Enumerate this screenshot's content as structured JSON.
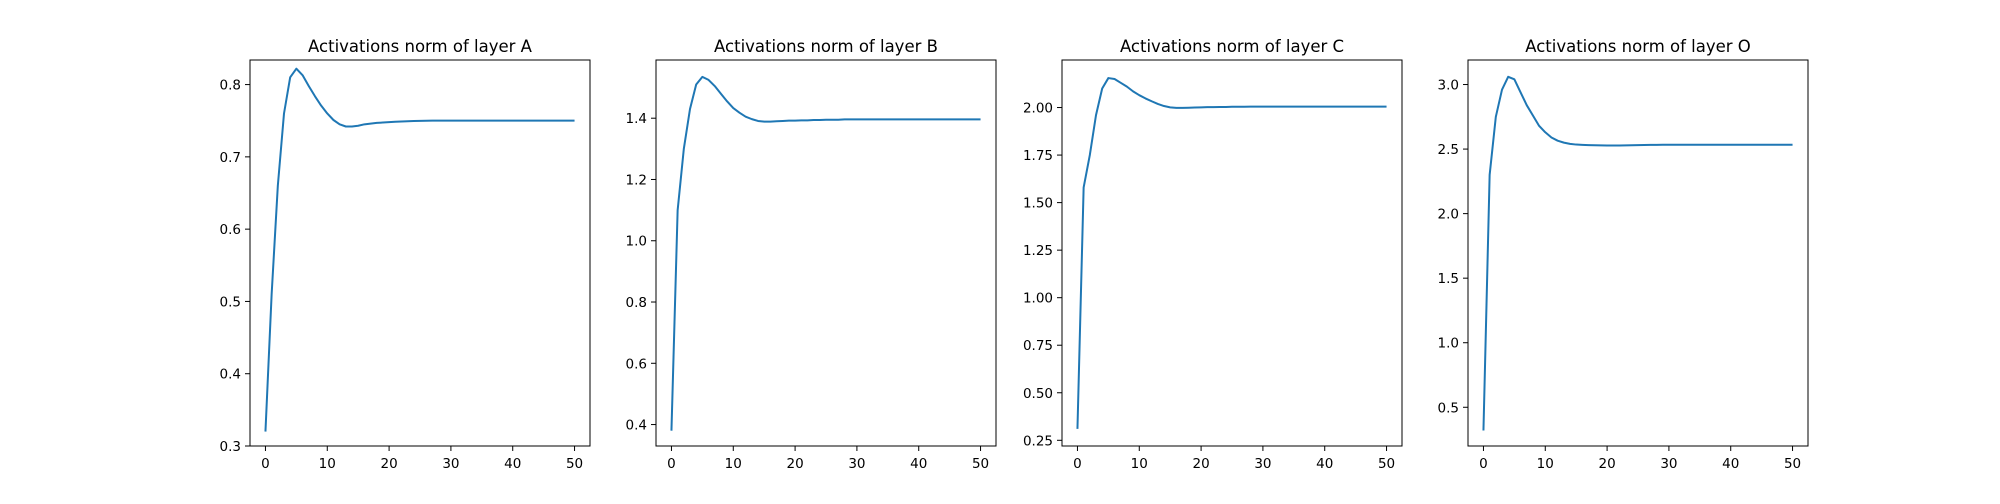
{
  "figure": {
    "line_color": "#1f77b4",
    "background": "#ffffff"
  },
  "chart_data": [
    {
      "type": "line",
      "title": "Activations norm of layer A",
      "xlabel": "",
      "ylabel": "",
      "xlim": [
        -2.5,
        52.5
      ],
      "ylim": [
        0.3,
        0.834
      ],
      "xticks": [
        0,
        10,
        20,
        30,
        40,
        50
      ],
      "yticks": [
        0.3,
        0.4,
        0.5,
        0.6,
        0.7,
        0.8
      ],
      "ytick_labels": [
        "0.3",
        "0.4",
        "0.5",
        "0.6",
        "0.7",
        "0.8"
      ],
      "grid": false,
      "x": [
        0,
        1,
        2,
        3,
        4,
        5,
        6,
        7,
        8,
        9,
        10,
        11,
        12,
        13,
        14,
        15,
        16,
        17,
        18,
        19,
        20,
        21,
        22,
        23,
        24,
        25,
        26,
        27,
        28,
        29,
        30,
        31,
        32,
        33,
        34,
        35,
        36,
        37,
        38,
        39,
        40,
        41,
        42,
        43,
        44,
        45,
        46,
        47,
        48,
        49,
        50
      ],
      "series": [
        {
          "values": [
            0.32,
            0.51,
            0.66,
            0.76,
            0.81,
            0.822,
            0.813,
            0.798,
            0.784,
            0.771,
            0.76,
            0.751,
            0.745,
            0.742,
            0.742,
            0.743,
            0.745,
            0.746,
            0.747,
            0.7475,
            0.748,
            0.7485,
            0.749,
            0.7493,
            0.7496,
            0.7498,
            0.75,
            0.7501,
            0.7502,
            0.7502,
            0.7502,
            0.7502,
            0.7502,
            0.7502,
            0.7502,
            0.7502,
            0.7502,
            0.7502,
            0.7502,
            0.7502,
            0.7502,
            0.7502,
            0.7502,
            0.7502,
            0.7502,
            0.7502,
            0.7502,
            0.7502,
            0.7502,
            0.7502,
            0.7502
          ]
        }
      ]
    },
    {
      "type": "line",
      "title": "Activations norm of layer B",
      "xlabel": "",
      "ylabel": "",
      "xlim": [
        -2.5,
        52.5
      ],
      "ylim": [
        0.33,
        1.59
      ],
      "xticks": [
        0,
        10,
        20,
        30,
        40,
        50
      ],
      "yticks": [
        0.4,
        0.6,
        0.8,
        1.0,
        1.2,
        1.4
      ],
      "ytick_labels": [
        "0.4",
        "0.6",
        "0.8",
        "1.0",
        "1.2",
        "1.4"
      ],
      "grid": false,
      "x": [
        0,
        1,
        2,
        3,
        4,
        5,
        6,
        7,
        8,
        9,
        10,
        11,
        12,
        13,
        14,
        15,
        16,
        17,
        18,
        19,
        20,
        21,
        22,
        23,
        24,
        25,
        26,
        27,
        28,
        29,
        30,
        31,
        32,
        33,
        34,
        35,
        36,
        37,
        38,
        39,
        40,
        41,
        42,
        43,
        44,
        45,
        46,
        47,
        48,
        49,
        50
      ],
      "series": [
        {
          "values": [
            0.38,
            1.1,
            1.3,
            1.43,
            1.51,
            1.535,
            1.525,
            1.505,
            1.48,
            1.455,
            1.433,
            1.418,
            1.405,
            1.397,
            1.391,
            1.389,
            1.389,
            1.39,
            1.391,
            1.392,
            1.392,
            1.393,
            1.393,
            1.394,
            1.394,
            1.395,
            1.395,
            1.395,
            1.396,
            1.396,
            1.396,
            1.396,
            1.396,
            1.396,
            1.396,
            1.396,
            1.396,
            1.396,
            1.396,
            1.396,
            1.396,
            1.396,
            1.396,
            1.396,
            1.396,
            1.396,
            1.396,
            1.396,
            1.396,
            1.396,
            1.396
          ]
        }
      ]
    },
    {
      "type": "line",
      "title": "Activations norm of layer C",
      "xlabel": "",
      "ylabel": "",
      "xlim": [
        -2.5,
        52.5
      ],
      "ylim": [
        0.22,
        2.25
      ],
      "xticks": [
        0,
        10,
        20,
        30,
        40,
        50
      ],
      "yticks": [
        0.25,
        0.5,
        0.75,
        1.0,
        1.25,
        1.5,
        1.75,
        2.0
      ],
      "ytick_labels": [
        "0.25",
        "0.50",
        "0.75",
        "1.00",
        "1.25",
        "1.50",
        "1.75",
        "2.00"
      ],
      "grid": false,
      "x": [
        0,
        1,
        2,
        3,
        4,
        5,
        6,
        7,
        8,
        9,
        10,
        11,
        12,
        13,
        14,
        15,
        16,
        17,
        18,
        19,
        20,
        21,
        22,
        23,
        24,
        25,
        26,
        27,
        28,
        29,
        30,
        31,
        32,
        33,
        34,
        35,
        36,
        37,
        38,
        39,
        40,
        41,
        42,
        43,
        44,
        45,
        46,
        47,
        48,
        49,
        50
      ],
      "series": [
        {
          "values": [
            0.31,
            1.58,
            1.75,
            1.96,
            2.1,
            2.155,
            2.15,
            2.13,
            2.11,
            2.085,
            2.065,
            2.048,
            2.033,
            2.019,
            2.008,
            2.001,
            1.998,
            1.998,
            1.999,
            2.0,
            2.001,
            2.002,
            2.002,
            2.003,
            2.003,
            2.004,
            2.004,
            2.004,
            2.005,
            2.005,
            2.005,
            2.005,
            2.005,
            2.005,
            2.005,
            2.005,
            2.005,
            2.005,
            2.005,
            2.005,
            2.005,
            2.005,
            2.005,
            2.005,
            2.005,
            2.005,
            2.005,
            2.005,
            2.005,
            2.005,
            2.005
          ]
        }
      ]
    },
    {
      "type": "line",
      "title": "Activations norm of layer O",
      "xlabel": "",
      "ylabel": "",
      "xlim": [
        -2.5,
        52.5
      ],
      "ylim": [
        0.2,
        3.19
      ],
      "xticks": [
        0,
        10,
        20,
        30,
        40,
        50
      ],
      "yticks": [
        0.5,
        1.0,
        1.5,
        2.0,
        2.5,
        3.0
      ],
      "ytick_labels": [
        "0.5",
        "1.0",
        "1.5",
        "2.0",
        "2.5",
        "3.0"
      ],
      "grid": false,
      "x": [
        0,
        1,
        2,
        3,
        4,
        5,
        6,
        7,
        8,
        9,
        10,
        11,
        12,
        13,
        14,
        15,
        16,
        17,
        18,
        19,
        20,
        21,
        22,
        23,
        24,
        25,
        26,
        27,
        28,
        29,
        30,
        31,
        32,
        33,
        34,
        35,
        36,
        37,
        38,
        39,
        40,
        41,
        42,
        43,
        44,
        45,
        46,
        47,
        48,
        49,
        50
      ],
      "series": [
        {
          "values": [
            0.32,
            2.3,
            2.75,
            2.96,
            3.06,
            3.04,
            2.94,
            2.84,
            2.76,
            2.68,
            2.63,
            2.59,
            2.565,
            2.55,
            2.54,
            2.535,
            2.533,
            2.531,
            2.53,
            2.529,
            2.528,
            2.528,
            2.528,
            2.529,
            2.53,
            2.531,
            2.532,
            2.533,
            2.533,
            2.534,
            2.534,
            2.534,
            2.534,
            2.534,
            2.534,
            2.534,
            2.534,
            2.534,
            2.534,
            2.534,
            2.534,
            2.534,
            2.534,
            2.534,
            2.534,
            2.534,
            2.534,
            2.534,
            2.534,
            2.534,
            2.534
          ]
        }
      ]
    }
  ]
}
